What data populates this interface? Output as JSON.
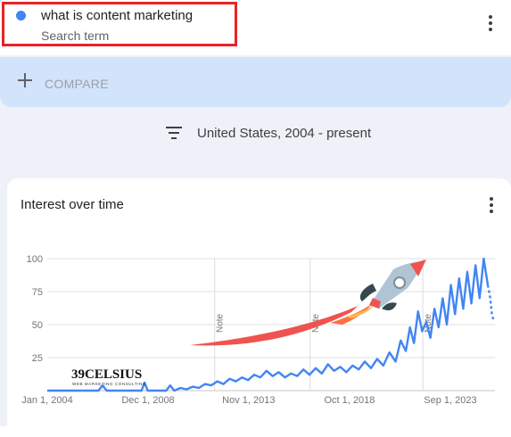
{
  "search_term": {
    "title": "what is content marketing",
    "subtitle": "Search term",
    "color": "#4285f4"
  },
  "compare": {
    "label": "COMPARE"
  },
  "filter": {
    "label": "United States, 2004 - present"
  },
  "card": {
    "title": "Interest over time"
  },
  "watermark": {
    "name": "39CELSIUS",
    "tagline": "WEB MARKETING CONSULTING"
  },
  "chart_data": {
    "type": "line",
    "title": "Interest over time",
    "xlabel": "",
    "ylabel": "",
    "ylim": [
      0,
      100
    ],
    "yticks": [
      25,
      50,
      75,
      100
    ],
    "xtick_labels": [
      "Jan 1, 2004",
      "Dec 1, 2008",
      "Nov 1, 2013",
      "Oct 1, 2018",
      "Sep 1, 2023"
    ],
    "xtick_years": [
      2004.0,
      2008.92,
      2013.83,
      2018.75,
      2023.67
    ],
    "grid": true,
    "series": [
      {
        "color": "#4285f4",
        "points": [
          [
            2004.0,
            0
          ],
          [
            2006.5,
            0
          ],
          [
            2006.7,
            4
          ],
          [
            2006.9,
            0
          ],
          [
            2008.6,
            0
          ],
          [
            2008.75,
            6
          ],
          [
            2008.9,
            0
          ],
          [
            2009.8,
            0
          ],
          [
            2010.0,
            4
          ],
          [
            2010.2,
            0
          ],
          [
            2010.5,
            2
          ],
          [
            2010.8,
            1
          ],
          [
            2011.1,
            3
          ],
          [
            2011.4,
            2
          ],
          [
            2011.7,
            5
          ],
          [
            2012.0,
            4
          ],
          [
            2012.3,
            7
          ],
          [
            2012.6,
            5
          ],
          [
            2012.9,
            9
          ],
          [
            2013.2,
            7
          ],
          [
            2013.5,
            10
          ],
          [
            2013.8,
            8
          ],
          [
            2014.1,
            12
          ],
          [
            2014.4,
            10
          ],
          [
            2014.7,
            15
          ],
          [
            2015.0,
            11
          ],
          [
            2015.3,
            14
          ],
          [
            2015.6,
            10
          ],
          [
            2015.9,
            13
          ],
          [
            2016.2,
            11
          ],
          [
            2016.5,
            16
          ],
          [
            2016.8,
            12
          ],
          [
            2017.1,
            17
          ],
          [
            2017.4,
            13
          ],
          [
            2017.7,
            20
          ],
          [
            2018.0,
            15
          ],
          [
            2018.3,
            18
          ],
          [
            2018.6,
            14
          ],
          [
            2018.9,
            19
          ],
          [
            2019.2,
            16
          ],
          [
            2019.5,
            22
          ],
          [
            2019.8,
            17
          ],
          [
            2020.1,
            24
          ],
          [
            2020.4,
            19
          ],
          [
            2020.7,
            29
          ],
          [
            2021.0,
            22
          ],
          [
            2021.25,
            38
          ],
          [
            2021.5,
            30
          ],
          [
            2021.7,
            48
          ],
          [
            2021.9,
            36
          ],
          [
            2022.1,
            60
          ],
          [
            2022.3,
            45
          ],
          [
            2022.5,
            52
          ],
          [
            2022.7,
            40
          ],
          [
            2022.9,
            62
          ],
          [
            2023.1,
            48
          ],
          [
            2023.3,
            70
          ],
          [
            2023.5,
            50
          ],
          [
            2023.7,
            80
          ],
          [
            2023.9,
            58
          ],
          [
            2024.1,
            85
          ],
          [
            2024.3,
            62
          ],
          [
            2024.5,
            90
          ],
          [
            2024.7,
            66
          ],
          [
            2024.9,
            95
          ],
          [
            2025.1,
            70
          ],
          [
            2025.3,
            100
          ],
          [
            2025.5,
            80
          ]
        ],
        "partial_points": [
          [
            2025.5,
            80
          ],
          [
            2025.6,
            72
          ],
          [
            2025.7,
            58
          ],
          [
            2025.8,
            52
          ]
        ]
      }
    ],
    "annotations": [
      {
        "label": "Note",
        "year": 2012.17
      },
      {
        "label": "Note",
        "year": 2016.83
      },
      {
        "label": "Note",
        "year": 2022.33
      }
    ]
  }
}
